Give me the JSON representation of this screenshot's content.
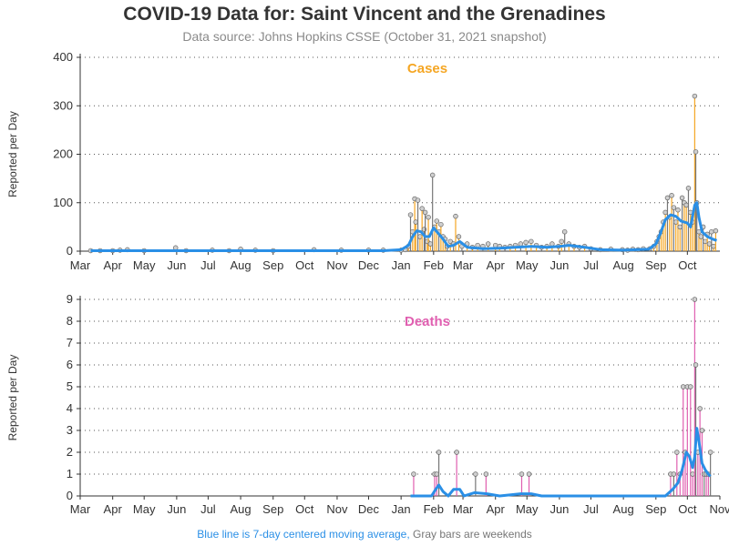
{
  "title": "COVID-19 Data for: Saint Vincent and the Grenadines",
  "subtitle": "Data source: Johns Hopkins CSSE (October 31, 2021 snapshot)",
  "footnote": {
    "avg_text": "Blue line is 7-day centered moving average,",
    "weekend_text": "Gray bars are weekends"
  },
  "colors": {
    "moving_average": "#2a8fe6",
    "cases": "#f5a623",
    "deaths": "#e05fb0",
    "weekend": "#777777",
    "grid": "#555555"
  },
  "chart_data": [
    {
      "type": "bar",
      "title": "Cases",
      "ylabel": "Reported per Day",
      "ylim": [
        0,
        400
      ],
      "yticks": [
        0,
        100,
        200,
        300,
        400
      ],
      "xlim": [
        "2020-03-01",
        "2021-11-01"
      ],
      "xticks": [
        "Mar",
        "Apr",
        "May",
        "Jun",
        "Jul",
        "Aug",
        "Sep",
        "Oct",
        "Nov",
        "Dec",
        "Jan",
        "Feb",
        "Mar",
        "Apr",
        "May",
        "Jun",
        "Jul",
        "Aug",
        "Sep",
        "Oct"
      ],
      "grid": "horizontal dotted",
      "series": [
        {
          "values": [
            [
              "2020-03-11",
              1
            ],
            [
              "2020-03-20",
              1
            ],
            [
              "2020-04-01",
              1
            ],
            [
              "2020-04-08",
              2
            ],
            [
              "2020-04-15",
              3
            ],
            [
              "2020-05-01",
              1
            ],
            [
              "2020-05-31",
              7
            ],
            [
              "2020-06-10",
              1
            ],
            [
              "2020-07-05",
              2
            ],
            [
              "2020-07-21",
              1
            ],
            [
              "2020-08-01",
              4
            ],
            [
              "2020-08-15",
              2
            ],
            [
              "2020-09-01",
              1
            ],
            [
              "2020-10-10",
              3
            ],
            [
              "2020-11-05",
              2
            ],
            [
              "2020-12-01",
              2
            ],
            [
              "2020-12-15",
              2
            ],
            [
              "2021-01-01",
              2
            ],
            [
              "2021-01-05",
              3
            ],
            [
              "2021-01-08",
              10
            ],
            [
              "2021-01-10",
              75
            ],
            [
              "2021-01-12",
              40
            ],
            [
              "2021-01-14",
              108
            ],
            [
              "2021-01-15",
              60
            ],
            [
              "2021-01-17",
              105
            ],
            [
              "2021-01-19",
              30
            ],
            [
              "2021-01-21",
              88
            ],
            [
              "2021-01-23",
              45
            ],
            [
              "2021-01-24",
              80
            ],
            [
              "2021-01-26",
              20
            ],
            [
              "2021-01-27",
              70
            ],
            [
              "2021-01-29",
              15
            ],
            [
              "2021-01-31",
              157
            ],
            [
              "2021-02-02",
              50
            ],
            [
              "2021-02-04",
              62
            ],
            [
              "2021-02-06",
              40
            ],
            [
              "2021-02-08",
              55
            ],
            [
              "2021-02-10",
              30
            ],
            [
              "2021-02-12",
              25
            ],
            [
              "2021-02-14",
              10
            ],
            [
              "2021-02-17",
              20
            ],
            [
              "2021-02-20",
              15
            ],
            [
              "2021-02-22",
              72
            ],
            [
              "2021-02-25",
              30
            ],
            [
              "2021-02-28",
              10
            ],
            [
              "2021-03-05",
              15
            ],
            [
              "2021-03-10",
              8
            ],
            [
              "2021-03-15",
              12
            ],
            [
              "2021-03-20",
              10
            ],
            [
              "2021-03-25",
              15
            ],
            [
              "2021-04-01",
              12
            ],
            [
              "2021-04-05",
              10
            ],
            [
              "2021-04-10",
              8
            ],
            [
              "2021-04-15",
              10
            ],
            [
              "2021-04-20",
              12
            ],
            [
              "2021-04-25",
              15
            ],
            [
              "2021-04-30",
              18
            ],
            [
              "2021-05-05",
              20
            ],
            [
              "2021-05-10",
              12
            ],
            [
              "2021-05-15",
              8
            ],
            [
              "2021-05-20",
              10
            ],
            [
              "2021-05-25",
              15
            ],
            [
              "2021-05-31",
              10
            ],
            [
              "2021-06-03",
              20
            ],
            [
              "2021-06-06",
              40
            ],
            [
              "2021-06-10",
              15
            ],
            [
              "2021-06-15",
              10
            ],
            [
              "2021-06-20",
              8
            ],
            [
              "2021-06-25",
              10
            ],
            [
              "2021-07-01",
              5
            ],
            [
              "2021-07-10",
              3
            ],
            [
              "2021-07-20",
              4
            ],
            [
              "2021-07-31",
              3
            ],
            [
              "2021-08-05",
              2
            ],
            [
              "2021-08-10",
              4
            ],
            [
              "2021-08-15",
              3
            ],
            [
              "2021-08-20",
              5
            ],
            [
              "2021-08-26",
              5
            ],
            [
              "2021-08-30",
              10
            ],
            [
              "2021-09-02",
              20
            ],
            [
              "2021-09-04",
              30
            ],
            [
              "2021-09-06",
              40
            ],
            [
              "2021-09-08",
              60
            ],
            [
              "2021-09-10",
              80
            ],
            [
              "2021-09-12",
              110
            ],
            [
              "2021-09-14",
              70
            ],
            [
              "2021-09-16",
              115
            ],
            [
              "2021-09-18",
              90
            ],
            [
              "2021-09-20",
              60
            ],
            [
              "2021-09-22",
              85
            ],
            [
              "2021-09-24",
              50
            ],
            [
              "2021-09-26",
              110
            ],
            [
              "2021-09-28",
              100
            ],
            [
              "2021-09-30",
              95
            ],
            [
              "2021-10-02",
              130
            ],
            [
              "2021-10-04",
              80
            ],
            [
              "2021-10-06",
              60
            ],
            [
              "2021-10-08",
              320
            ],
            [
              "2021-10-09",
              205
            ],
            [
              "2021-10-10",
              100
            ],
            [
              "2021-10-12",
              40
            ],
            [
              "2021-10-14",
              30
            ],
            [
              "2021-10-16",
              50
            ],
            [
              "2021-10-18",
              20
            ],
            [
              "2021-10-20",
              35
            ],
            [
              "2021-10-22",
              15
            ],
            [
              "2021-10-24",
              40
            ],
            [
              "2021-10-26",
              10
            ],
            [
              "2021-10-28",
              42
            ]
          ]
        }
      ],
      "moving_average": [
        [
          "2020-03-11",
          1
        ],
        [
          "2020-04-15",
          1
        ],
        [
          "2020-06-01",
          1
        ],
        [
          "2020-08-01",
          1
        ],
        [
          "2020-10-01",
          1
        ],
        [
          "2020-12-15",
          1
        ],
        [
          "2021-01-01",
          3
        ],
        [
          "2021-01-08",
          12
        ],
        [
          "2021-01-12",
          30
        ],
        [
          "2021-01-16",
          42
        ],
        [
          "2021-01-20",
          40
        ],
        [
          "2021-01-24",
          30
        ],
        [
          "2021-01-28",
          30
        ],
        [
          "2021-02-01",
          48
        ],
        [
          "2021-02-05",
          38
        ],
        [
          "2021-02-10",
          25
        ],
        [
          "2021-02-15",
          10
        ],
        [
          "2021-02-20",
          12
        ],
        [
          "2021-02-26",
          20
        ],
        [
          "2021-03-05",
          8
        ],
        [
          "2021-03-20",
          5
        ],
        [
          "2021-04-05",
          6
        ],
        [
          "2021-04-20",
          8
        ],
        [
          "2021-05-05",
          10
        ],
        [
          "2021-05-20",
          8
        ],
        [
          "2021-06-01",
          10
        ],
        [
          "2021-06-10",
          12
        ],
        [
          "2021-06-25",
          8
        ],
        [
          "2021-07-10",
          3
        ],
        [
          "2021-08-01",
          2
        ],
        [
          "2021-08-25",
          4
        ],
        [
          "2021-09-01",
          15
        ],
        [
          "2021-09-05",
          35
        ],
        [
          "2021-09-10",
          65
        ],
        [
          "2021-09-15",
          75
        ],
        [
          "2021-09-20",
          72
        ],
        [
          "2021-09-25",
          62
        ],
        [
          "2021-10-01",
          58
        ],
        [
          "2021-10-04",
          50
        ],
        [
          "2021-10-08",
          95
        ],
        [
          "2021-10-10",
          100
        ],
        [
          "2021-10-12",
          70
        ],
        [
          "2021-10-15",
          40
        ],
        [
          "2021-10-20",
          30
        ],
        [
          "2021-10-25",
          25
        ],
        [
          "2021-10-29",
          22
        ]
      ]
    },
    {
      "type": "bar",
      "title": "Deaths",
      "ylabel": "Reported per Day",
      "ylim": [
        0,
        9
      ],
      "yticks": [
        0,
        1,
        2,
        3,
        4,
        5,
        6,
        7,
        8,
        9
      ],
      "xlim": [
        "2020-03-01",
        "2021-11-01"
      ],
      "xticks": [
        "Mar",
        "Apr",
        "May",
        "Jun",
        "Jul",
        "Aug",
        "Sep",
        "Oct",
        "Nov",
        "Dec",
        "Jan",
        "Feb",
        "Mar",
        "Apr",
        "May",
        "Jun",
        "Jul",
        "Aug",
        "Sep",
        "Oct",
        "Nov"
      ],
      "grid": "horizontal dotted",
      "series": [
        {
          "values": [
            [
              "2021-01-13",
              1
            ],
            [
              "2021-02-02",
              1
            ],
            [
              "2021-02-04",
              1
            ],
            [
              "2021-02-06",
              2
            ],
            [
              "2021-02-23",
              2
            ],
            [
              "2021-03-13",
              1
            ],
            [
              "2021-03-23",
              1
            ],
            [
              "2021-04-26",
              1
            ],
            [
              "2021-05-03",
              1
            ],
            [
              "2021-09-15",
              1
            ],
            [
              "2021-09-18",
              1
            ],
            [
              "2021-09-21",
              2
            ],
            [
              "2021-09-24",
              1
            ],
            [
              "2021-09-27",
              5
            ],
            [
              "2021-09-29",
              2
            ],
            [
              "2021-10-01",
              5
            ],
            [
              "2021-10-04",
              5
            ],
            [
              "2021-10-06",
              1
            ],
            [
              "2021-10-08",
              9
            ],
            [
              "2021-10-09",
              6
            ],
            [
              "2021-10-11",
              2
            ],
            [
              "2021-10-13",
              4
            ],
            [
              "2021-10-15",
              3
            ],
            [
              "2021-10-17",
              1
            ],
            [
              "2021-10-19",
              1
            ],
            [
              "2021-10-21",
              1
            ],
            [
              "2021-10-23",
              2
            ]
          ]
        }
      ],
      "moving_average": [
        [
          "2021-01-10",
          0
        ],
        [
          "2021-01-30",
          0
        ],
        [
          "2021-02-03",
          0.3
        ],
        [
          "2021-02-06",
          0.5
        ],
        [
          "2021-02-10",
          0.2
        ],
        [
          "2021-02-15",
          0
        ],
        [
          "2021-02-20",
          0.3
        ],
        [
          "2021-02-26",
          0.3
        ],
        [
          "2021-03-02",
          0
        ],
        [
          "2021-03-12",
          0.15
        ],
        [
          "2021-03-24",
          0.1
        ],
        [
          "2021-04-05",
          0
        ],
        [
          "2021-04-25",
          0.1
        ],
        [
          "2021-05-05",
          0.1
        ],
        [
          "2021-05-15",
          0
        ],
        [
          "2021-09-10",
          0
        ],
        [
          "2021-09-17",
          0.3
        ],
        [
          "2021-09-22",
          0.6
        ],
        [
          "2021-09-26",
          1.2
        ],
        [
          "2021-09-30",
          2.0
        ],
        [
          "2021-10-03",
          1.8
        ],
        [
          "2021-10-06",
          1.3
        ],
        [
          "2021-10-08",
          1.8
        ],
        [
          "2021-10-10",
          3.1
        ],
        [
          "2021-10-12",
          2.5
        ],
        [
          "2021-10-15",
          1.5
        ],
        [
          "2021-10-18",
          1.2
        ],
        [
          "2021-10-21",
          1.0
        ],
        [
          "2021-10-23",
          0.9
        ]
      ]
    }
  ]
}
